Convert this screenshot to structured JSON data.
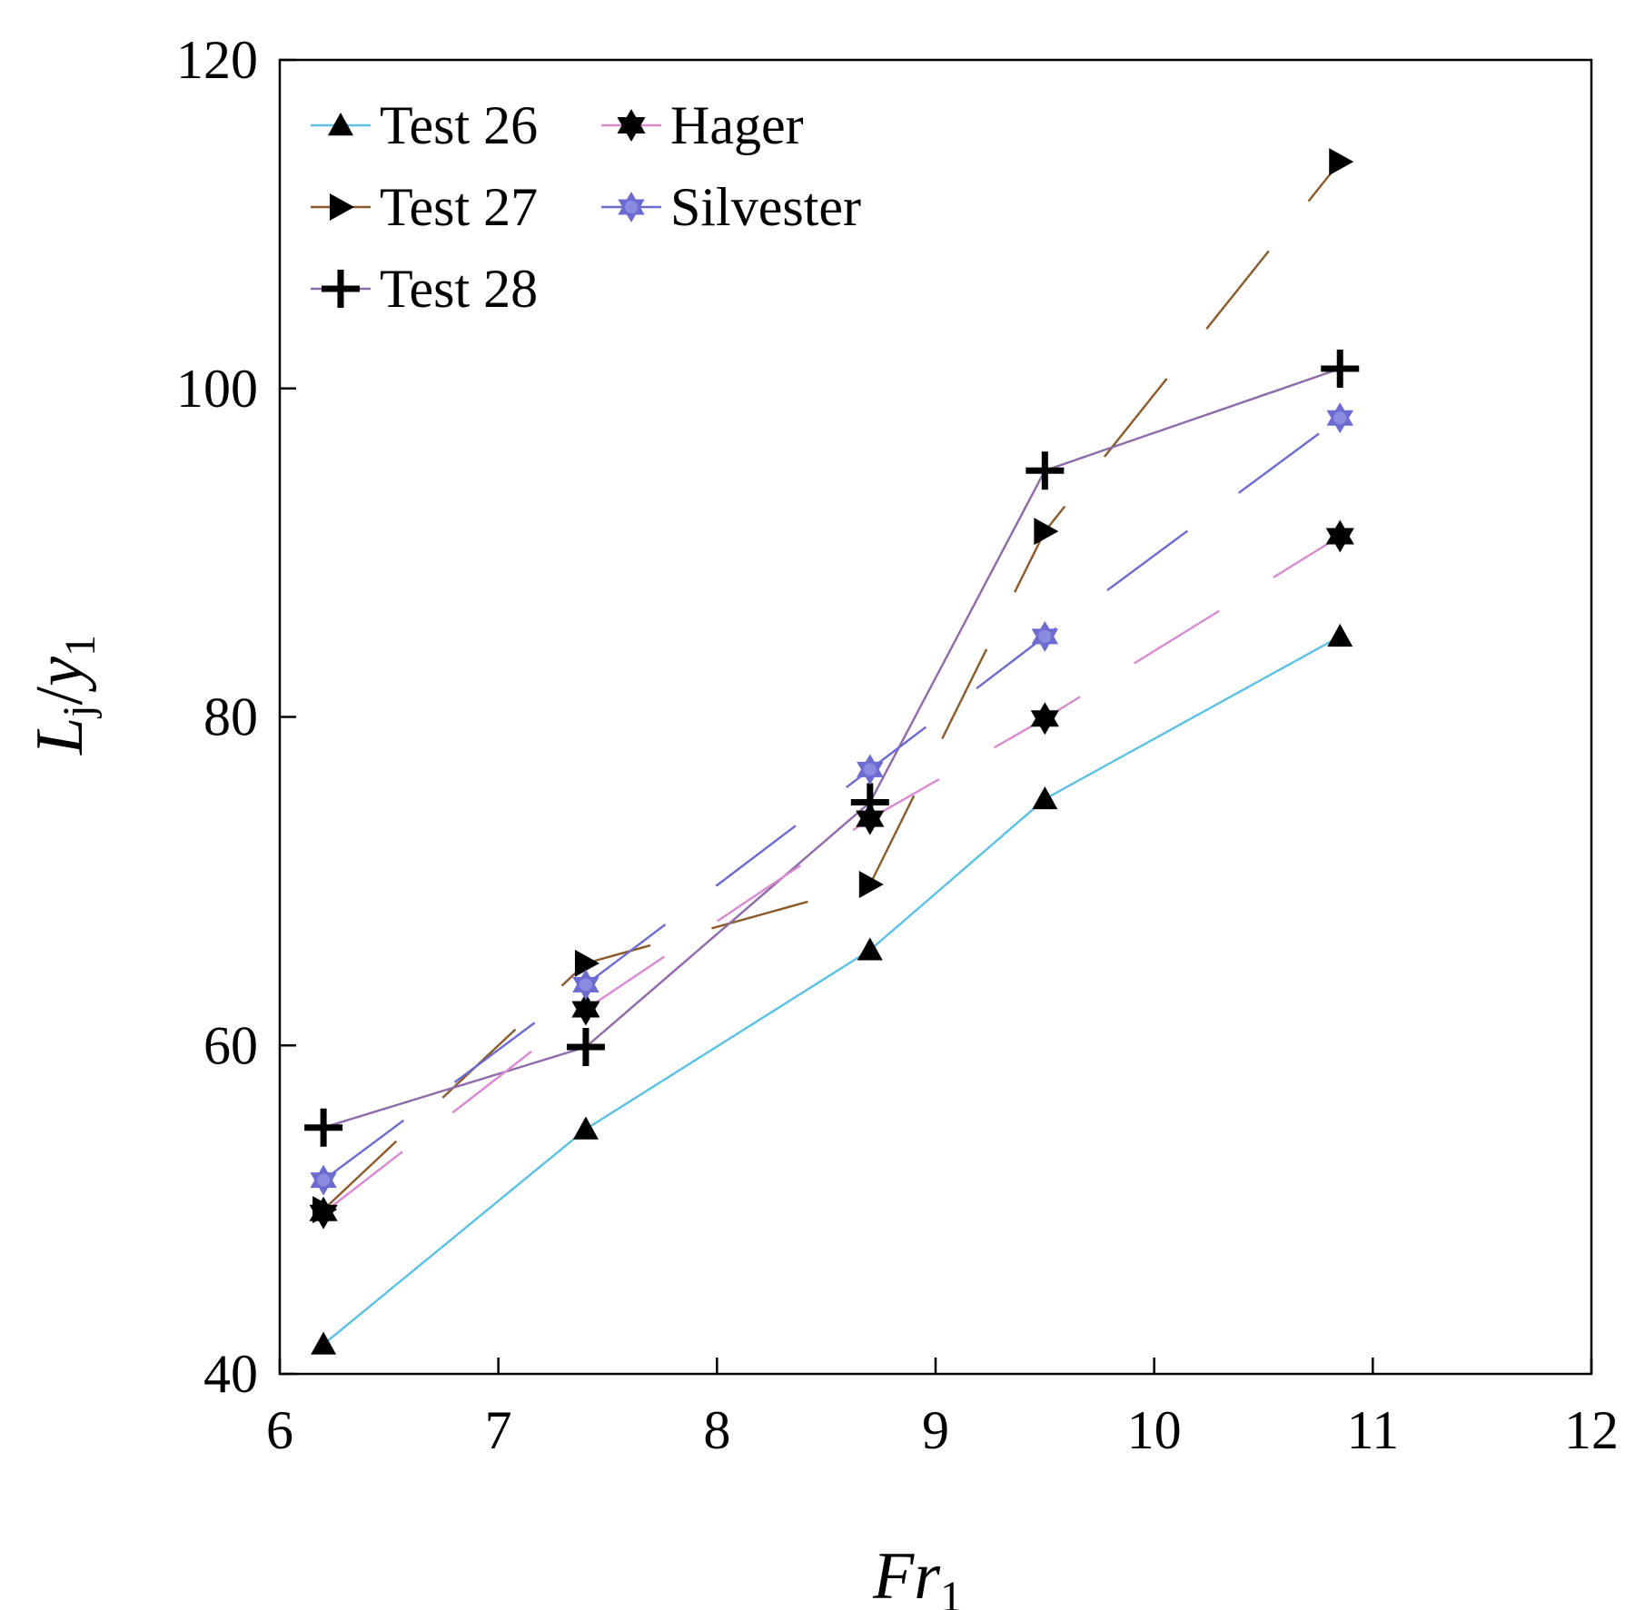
{
  "chart_data": {
    "type": "line",
    "xlabel": {
      "main": "Fr",
      "sub": "1"
    },
    "ylabel": {
      "main": "L",
      "mid": "j",
      "slash": "/",
      "tail": "y",
      "sub": "1"
    },
    "xlim": [
      6,
      12
    ],
    "ylim": [
      40,
      120
    ],
    "xticks": [
      6,
      7,
      8,
      9,
      10,
      11,
      12
    ],
    "yticks": [
      40,
      60,
      80,
      100,
      120
    ],
    "grid": false,
    "legend_position": "top-left",
    "series": [
      {
        "name": "Test 26",
        "marker": "triangle",
        "color": "#5bc0e6",
        "dashed": false,
        "x": [
          6.2,
          7.4,
          8.7,
          9.5,
          10.85
        ],
        "y": [
          41.8,
          54.9,
          65.8,
          75.0,
          84.9
        ]
      },
      {
        "name": "Test 27",
        "marker": "tri-right",
        "color": "#8b5a2b",
        "dashed": true,
        "x": [
          6.2,
          7.4,
          8.7,
          9.5,
          10.85
        ],
        "y": [
          50.0,
          65.0,
          69.8,
          91.3,
          113.8
        ]
      },
      {
        "name": "Test 28",
        "marker": "plus",
        "color": "#8f6aa8",
        "dashed": false,
        "x": [
          6.2,
          7.4,
          8.7,
          9.5,
          10.85
        ],
        "y": [
          55.0,
          59.9,
          74.8,
          95.0,
          101.2
        ]
      },
      {
        "name": "Hager",
        "marker": "hexstar",
        "color": "#d98ad0",
        "dashed": true,
        "x": [
          6.2,
          7.4,
          8.7,
          9.5,
          10.85
        ],
        "y": [
          49.8,
          62.2,
          73.8,
          79.9,
          91.0
        ]
      },
      {
        "name": "Silvester",
        "marker": "hexstar",
        "color": "#6b6bd0",
        "dashed": true,
        "x": [
          6.2,
          7.4,
          8.7,
          9.5,
          10.85
        ],
        "y": [
          51.8,
          63.7,
          76.8,
          84.9,
          98.2
        ]
      }
    ]
  }
}
